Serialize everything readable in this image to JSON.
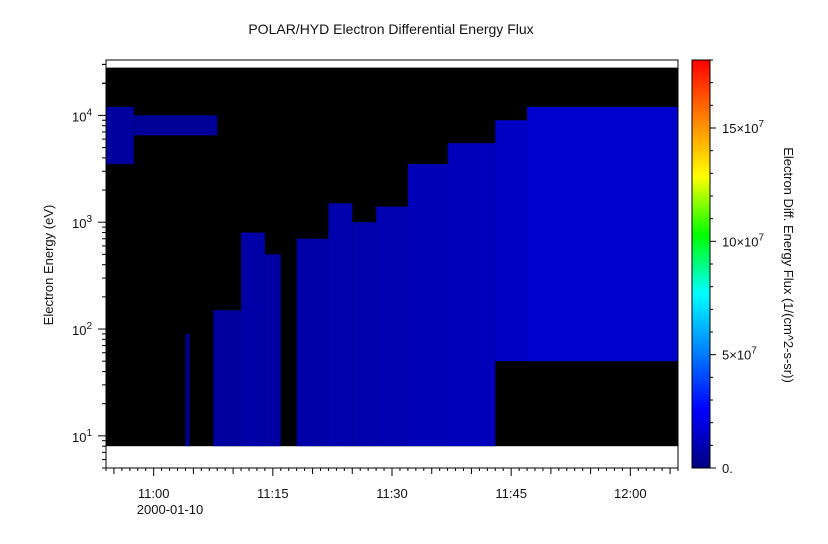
{
  "chart_data": {
    "type": "heatmap",
    "title": "POLAR/HYD  Electron Differential Energy Flux",
    "xlabel": "",
    "ylabel": "Electron Energy (eV)",
    "y_scale": "log",
    "ylim": [
      5,
      33000
    ],
    "x_axis": {
      "range": [
        "10:54",
        "12:06"
      ],
      "tick_labels": [
        "11:00",
        "11:15",
        "11:30",
        "11:45",
        "12:00"
      ],
      "tick_times": [
        "11:00",
        "11:15",
        "11:30",
        "11:45",
        "12:00"
      ],
      "date_label": "2000-01-10"
    },
    "y_tick_labels": [
      {
        "value": 10,
        "base": "10",
        "exp": "1"
      },
      {
        "value": 100,
        "base": "10",
        "exp": "2"
      },
      {
        "value": 1000,
        "base": "10",
        "exp": "3"
      },
      {
        "value": 10000,
        "base": "10",
        "exp": "4"
      }
    ],
    "colorbar": {
      "label": "Electron Diff. Energy Flux (1/(cm^2-s-sr))",
      "range": [
        0,
        180000000
      ],
      "ticks": [
        {
          "value": 0,
          "text": "0.",
          "exp": ""
        },
        {
          "value": 50000000,
          "text": "5×10",
          "exp": "7"
        },
        {
          "value": 100000000,
          "text": "10×10",
          "exp": "7"
        },
        {
          "value": 150000000,
          "text": "15×10",
          "exp": "7"
        }
      ],
      "colors": [
        "#000080",
        "#0000ff",
        "#0080ff",
        "#00ffff",
        "#00ff00",
        "#ffff00",
        "#ff8000",
        "#ff0000"
      ]
    },
    "no_data_color": "#000000",
    "data_color": "#1e1eaa",
    "data_energy_range_ev": [
      8,
      28000
    ],
    "flux_regions": [
      {
        "t0": "10:54",
        "t1": "10:57.5",
        "e_low": 3500,
        "e_high": 12000,
        "value": 6000000
      },
      {
        "t0": "10:57.5",
        "t1": "11:08",
        "e_low": 6500,
        "e_high": 10000,
        "value": 5000000
      },
      {
        "t0": "11:04",
        "t1": "11:04.5",
        "e_low": 8,
        "e_high": 90,
        "value": 5000000
      },
      {
        "t0": "11:07.5",
        "t1": "11:11",
        "e_low": 8,
        "e_high": 150,
        "value": 6000000
      },
      {
        "t0": "11:11",
        "t1": "11:14",
        "e_low": 8,
        "e_high": 800,
        "value": 8000000
      },
      {
        "t0": "11:14",
        "t1": "11:16",
        "e_low": 8,
        "e_high": 500,
        "value": 7000000
      },
      {
        "t0": "11:18",
        "t1": "11:22",
        "e_low": 8,
        "e_high": 700,
        "value": 8000000
      },
      {
        "t0": "11:22",
        "t1": "11:25",
        "e_low": 8,
        "e_high": 1500,
        "value": 9000000
      },
      {
        "t0": "11:25",
        "t1": "11:28",
        "e_low": 8,
        "e_high": 1000,
        "value": 9000000
      },
      {
        "t0": "11:28",
        "t1": "11:32",
        "e_low": 8,
        "e_high": 1400,
        "value": 10000000
      },
      {
        "t0": "11:32",
        "t1": "11:37",
        "e_low": 8,
        "e_high": 3500,
        "value": 11000000
      },
      {
        "t0": "11:37",
        "t1": "11:43",
        "e_low": 8,
        "e_high": 5500,
        "value": 12000000
      },
      {
        "t0": "11:43",
        "t1": "11:47",
        "e_low": 50,
        "e_high": 9000,
        "value": 14000000
      },
      {
        "t0": "11:47",
        "t1": "12:06",
        "e_low": 50,
        "e_high": 12000,
        "value": 16000000
      }
    ]
  }
}
